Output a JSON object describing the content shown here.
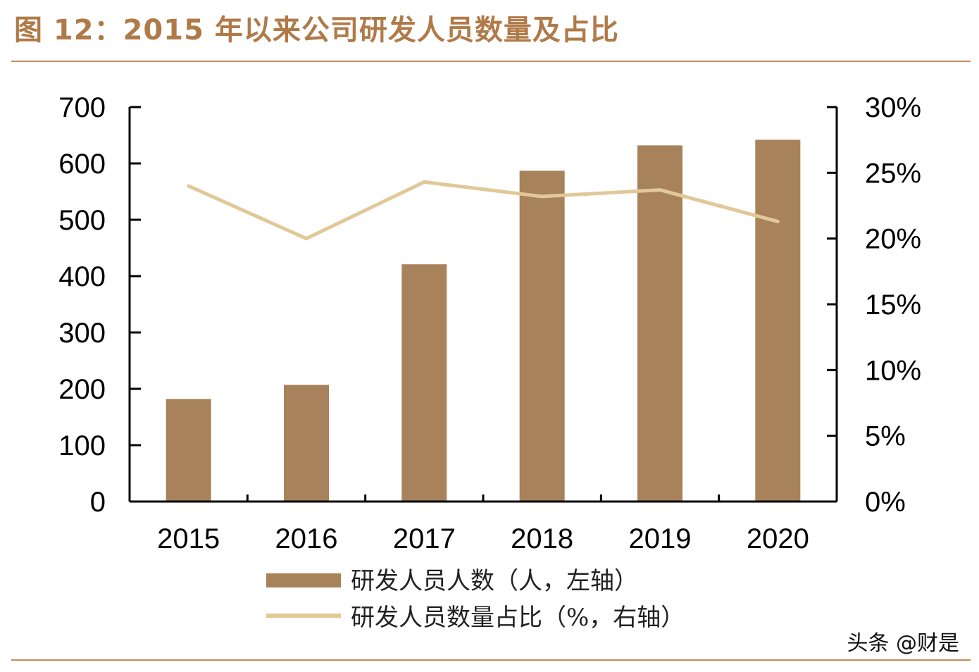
{
  "title": "图 12：2015 年以来公司研发人员数量及占比",
  "watermark": "头条 @财是",
  "colors": {
    "bar": "#a8825a",
    "line": "#e1c898",
    "axis": "#000000",
    "title": "#b07a48",
    "rule": "#c88a5a"
  },
  "chart_data": {
    "type": "bar",
    "categories": [
      "2015",
      "2016",
      "2017",
      "2018",
      "2019",
      "2020"
    ],
    "series": [
      {
        "name": "研发人员人数（人，左轴）",
        "type": "bar",
        "axis": "left",
        "values": [
          182,
          207,
          421,
          587,
          632,
          642
        ]
      },
      {
        "name": "研发人员数量占比（%，右轴）",
        "type": "line",
        "axis": "right",
        "values": [
          24.0,
          20.0,
          24.3,
          23.2,
          23.7,
          21.3
        ]
      }
    ],
    "y_left": {
      "min": 0,
      "max": 700,
      "ticks": [
        "0",
        "100",
        "200",
        "300",
        "400",
        "500",
        "600",
        "700"
      ]
    },
    "y_right": {
      "min": 0,
      "max": 30,
      "ticks": [
        "0%",
        "5%",
        "10%",
        "15%",
        "20%",
        "25%",
        "30%"
      ]
    },
    "grid": false,
    "legend_position": "bottom"
  }
}
